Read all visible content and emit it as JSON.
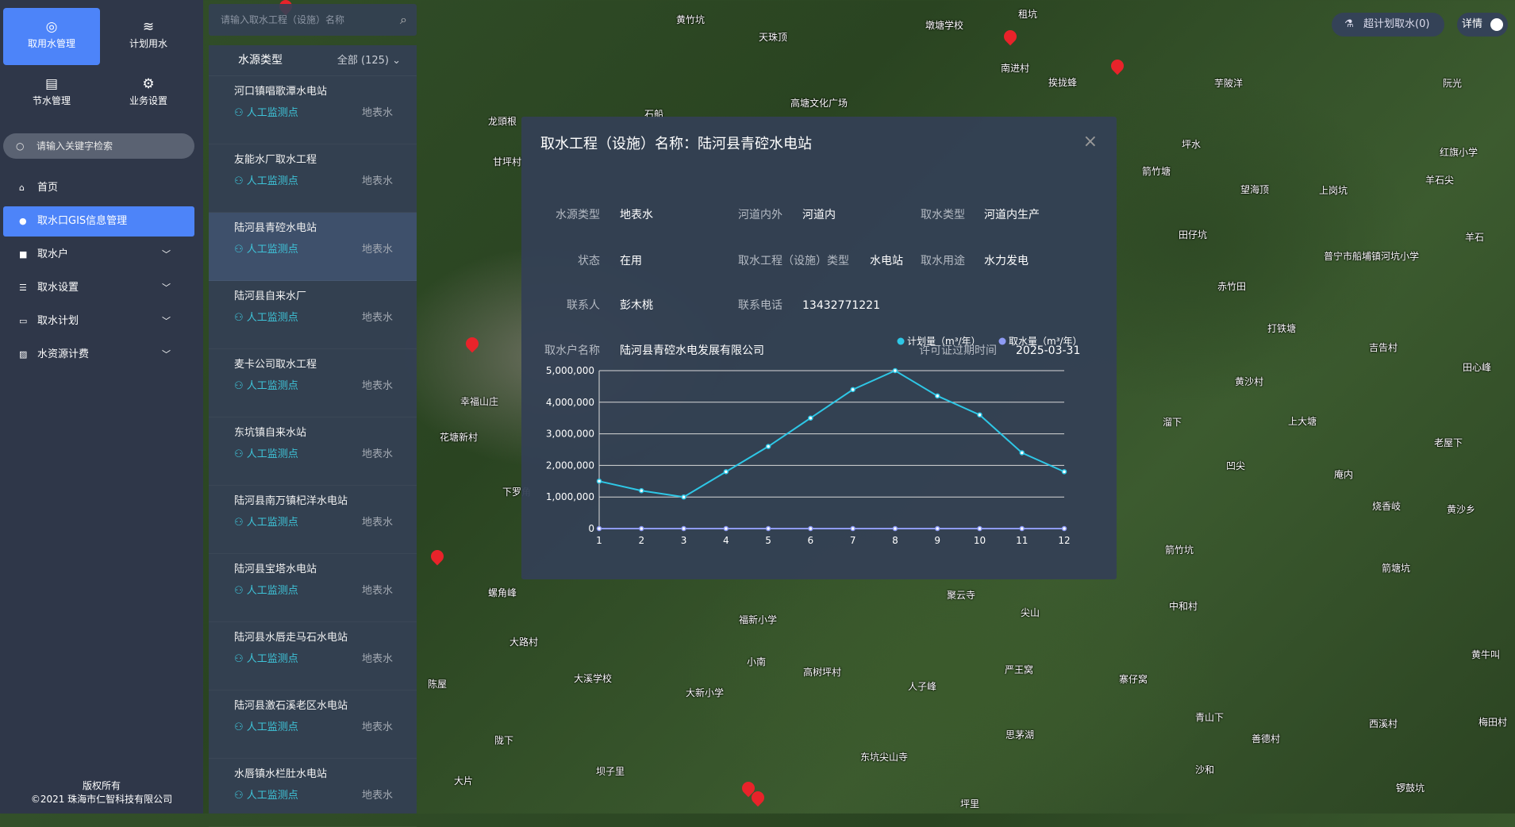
{
  "sidebar": {
    "tiles": [
      {
        "label": "取用水管理",
        "icon": "gauge-icon"
      },
      {
        "label": "计划用水",
        "icon": "waves-icon"
      },
      {
        "label": "节水管理",
        "icon": "document-icon"
      },
      {
        "label": "业务设置",
        "icon": "gear-icon"
      }
    ],
    "search_placeholder": "请输入关键字检索",
    "menu": [
      {
        "label": "首页",
        "icon": "home-icon"
      },
      {
        "label": "取水口GIS信息管理",
        "icon": "location-icon",
        "active": true
      },
      {
        "label": "取水户",
        "icon": "user-icon"
      },
      {
        "label": "取水设置",
        "icon": "database-icon"
      },
      {
        "label": "取水计划",
        "icon": "calendar-icon"
      },
      {
        "label": "水资源计费",
        "icon": "chart-icon"
      }
    ],
    "footer": {
      "line1": "版权所有",
      "line2": "©2021 珠海市仁智科技有限公司"
    }
  },
  "list": {
    "search_placeholder": "请输入取水工程（设施）名称",
    "filter_label": "水源类型",
    "filter_value": "全部 (125)",
    "items": [
      {
        "name": "河口镇唱歌潭水电站",
        "monitor": "人工监测点",
        "source": "地表水"
      },
      {
        "name": "友能水厂取水工程",
        "monitor": "人工监测点",
        "source": "地表水"
      },
      {
        "name": "陆河县青硿水电站",
        "monitor": "人工监测点",
        "source": "地表水"
      },
      {
        "name": "陆河县自来水厂",
        "monitor": "人工监测点",
        "source": "地表水"
      },
      {
        "name": "麦卡公司取水工程",
        "monitor": "人工监测点",
        "source": "地表水"
      },
      {
        "name": "东坑镇自来水站",
        "monitor": "人工监测点",
        "source": "地表水"
      },
      {
        "name": "陆河县南万镇杞洋水电站",
        "monitor": "人工监测点",
        "source": "地表水"
      },
      {
        "name": "陆河县宝塔水电站",
        "monitor": "人工监测点",
        "source": "地表水"
      },
      {
        "name": "陆河县水唇走马石水电站",
        "monitor": "人工监测点",
        "source": "地表水"
      },
      {
        "name": "陆河县激石溪老区水电站",
        "monitor": "人工监测点",
        "source": "地表水"
      },
      {
        "name": "水唇镇水栏肚水电站",
        "monitor": "人工监测点",
        "source": "地表水"
      }
    ]
  },
  "popup": {
    "title": "取水工程（设施）名称：陆河县青硿水电站",
    "fields": {
      "source_type": {
        "label": "水源类型",
        "value": "地表水"
      },
      "in_river": {
        "label": "河道内外",
        "value": "河道内"
      },
      "intake_type": {
        "label": "取水类型",
        "value": "河道内生产"
      },
      "status": {
        "label": "状态",
        "value": "在用"
      },
      "facility_type": {
        "label": "取水工程（设施）类型",
        "value": "水电站"
      },
      "usage": {
        "label": "取水用途",
        "value": "水力发电"
      },
      "contact": {
        "label": "联系人",
        "value": "彭木桃"
      },
      "phone": {
        "label": "联系电话",
        "value": "13432771221"
      },
      "owner": {
        "label": "取水户名称",
        "value": "陆河县青硿水电发展有限公司"
      },
      "expiry": {
        "label": "许可证过期时间",
        "value": "2025-03-31"
      }
    }
  },
  "chart_data": {
    "type": "line",
    "x": [
      1,
      2,
      3,
      4,
      5,
      6,
      7,
      8,
      9,
      10,
      11,
      12
    ],
    "y_ticks": [
      "0",
      "1,000,000",
      "2,000,000",
      "3,000,000",
      "4,000,000",
      "5,000,000"
    ],
    "ylim": [
      0,
      5000000
    ],
    "grid": true,
    "legend": "top-right",
    "series": [
      {
        "name": "计划量（m³/年）",
        "color": "#2ec7e6",
        "values": [
          1500000,
          1200000,
          1000000,
          1800000,
          2600000,
          3500000,
          4400000,
          5000000,
          4200000,
          3600000,
          2400000,
          1800000
        ]
      },
      {
        "name": "取水量（m³/年）",
        "color": "#8e9bf5",
        "values": [
          0,
          0,
          0,
          0,
          0,
          0,
          0,
          0,
          0,
          0,
          0,
          0
        ]
      }
    ]
  },
  "topbar": {
    "over_plan_label": "超计划取水(0)",
    "detail_label": "详情",
    "detail_on": true
  },
  "map_labels": [
    "黄竹坑",
    "天珠顶",
    "墩塘学校",
    "租坑",
    "南进村",
    "挨拢蜂",
    "芋陂洋",
    "阮光",
    "高塘文化广场",
    "龙頭根",
    "石船",
    "甘坪村",
    "坪水",
    "箭竹塘",
    "望海顶",
    "上岗坑",
    "红旗小学",
    "羊石尖",
    "田仔坑",
    "羊石",
    "赤竹田",
    "普宁市船埔镇河坑小学",
    "打铁塘",
    "吉告村",
    "田心峰",
    "黄沙村",
    "上大塘",
    "溜下",
    "老屋下",
    "凹尖",
    "庵内",
    "烧香岐",
    "黄沙乡",
    "箭竹坑",
    "箭塘坑",
    "中和村",
    "黄牛叫",
    "聚云寺",
    "尖山",
    "福新小学",
    "大路村",
    "大溪学校",
    "大新小学",
    "小南",
    "高树坪村",
    "严王窝",
    "人子峰",
    "寨仔窝",
    "青山下",
    "善德村",
    "西溪村",
    "梅田村",
    "思茅湖",
    "东坑尖山寺",
    "沙和",
    "锣鼓坑",
    "坝子里",
    "陇下",
    "大片",
    "坪里",
    "幸福山庄",
    "花塘新村",
    "下罗角",
    "螺角峰",
    "陈屋"
  ]
}
